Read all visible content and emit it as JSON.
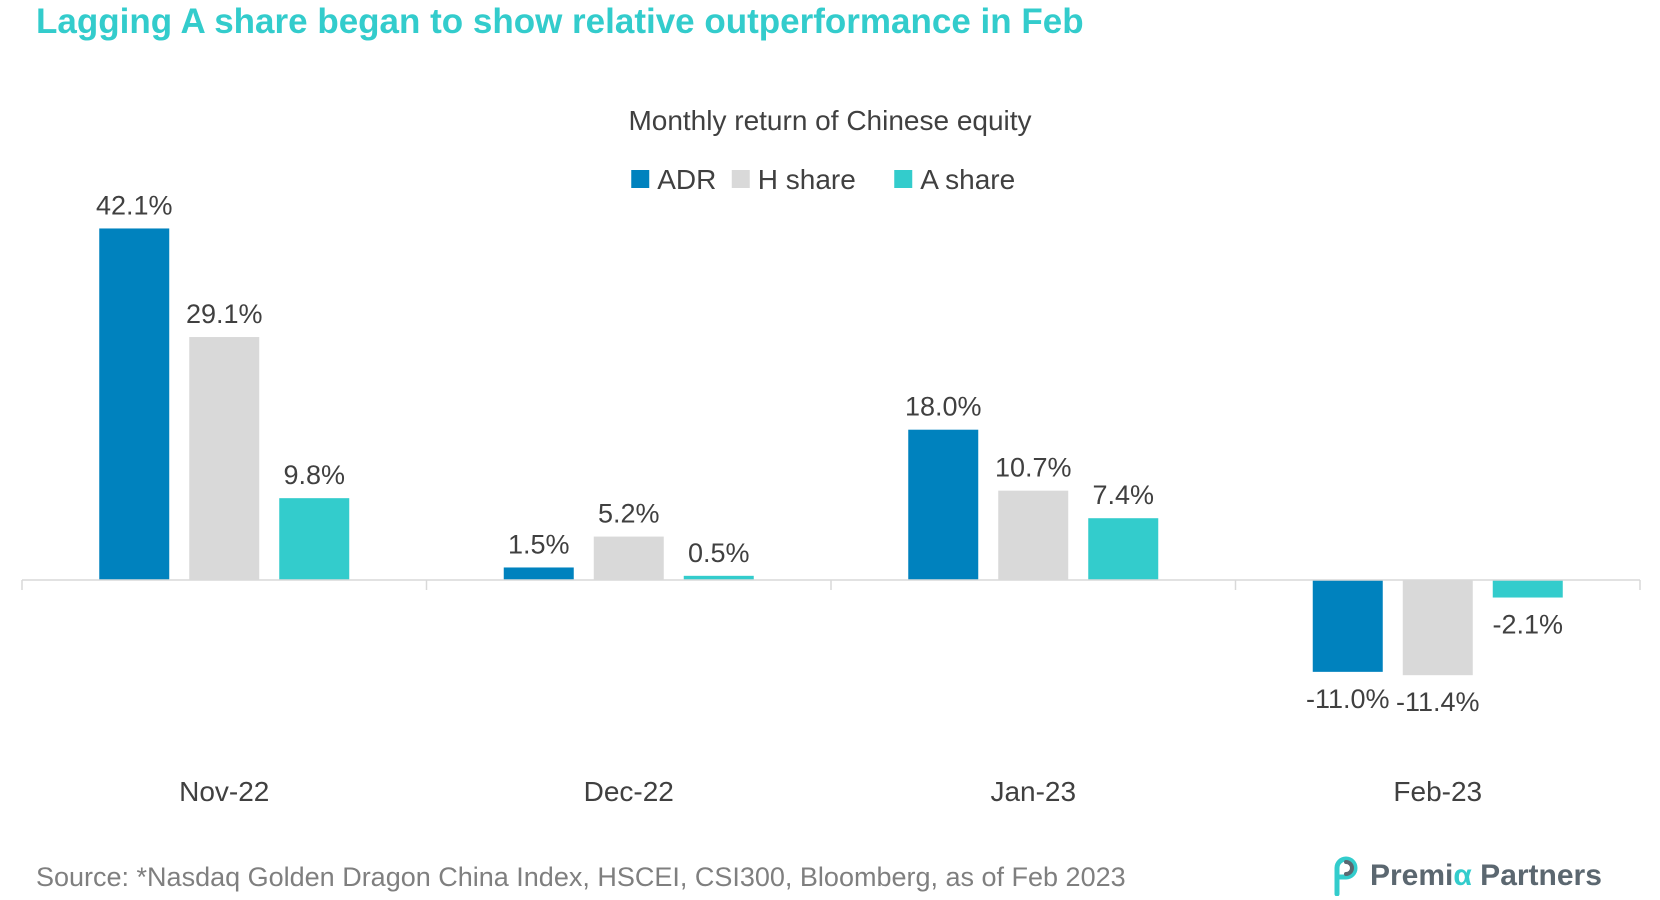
{
  "headline": "Lagging A share began to show relative outperformance in Feb",
  "source": "Source: *Nasdaq Golden Dragon China Index, HSCEI, CSI300, Bloomberg, as of Feb 2023",
  "logo": {
    "part1": "Premi",
    "alpha": "α",
    "part2": " Partners",
    "icon": "premia-p-logo-icon"
  },
  "colors": {
    "headline": "#33cccc",
    "adr": "#0082be",
    "h_share": "#d9d9d9",
    "a_share": "#33cccc",
    "axis": "#d9d9d9",
    "text": "#404040"
  },
  "chart_data": {
    "type": "bar",
    "title": "Monthly return of Chinese equity",
    "categories": [
      "Nov-22",
      "Dec-22",
      "Jan-23",
      "Feb-23"
    ],
    "series": [
      {
        "name": "ADR",
        "color": "#0082be",
        "values": [
          42.1,
          1.5,
          18.0,
          -11.0
        ],
        "labels": [
          "42.1%",
          "1.5%",
          "18.0%",
          "-11.0%"
        ]
      },
      {
        "name": "H share",
        "color": "#d9d9d9",
        "values": [
          29.1,
          5.2,
          10.7,
          -11.4
        ],
        "labels": [
          "29.1%",
          "5.2%",
          "10.7%",
          "-11.4%"
        ]
      },
      {
        "name": "A share",
        "color": "#33cccc",
        "values": [
          9.8,
          0.5,
          7.4,
          -2.1
        ],
        "labels": [
          "9.8%",
          "0.5%",
          "7.4%",
          "-2.1%"
        ]
      }
    ],
    "unit": "%",
    "legend_position": "top-center",
    "grid": false,
    "ylim": [
      -20,
      45
    ]
  }
}
